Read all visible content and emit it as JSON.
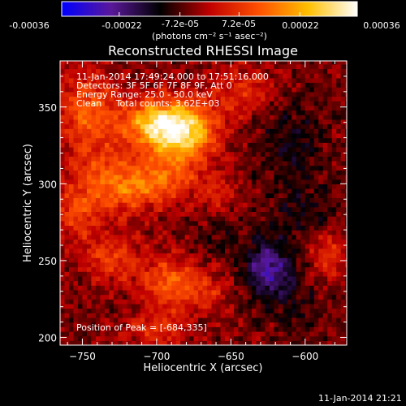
{
  "chart_data": {
    "type": "heatmap",
    "title": "Reconstructed RHESSI Image",
    "xlabel": "Heliocentric X (arcsec)",
    "ylabel": "Heliocentric Y (arcsec)",
    "xlim": [
      -765,
      -572
    ],
    "ylim": [
      195,
      380
    ],
    "xticks": [
      -750,
      -700,
      -650,
      -600
    ],
    "yticks": [
      200,
      250,
      300,
      350
    ],
    "colorbar": {
      "label": "(photons cm⁻² s⁻¹ asec⁻²)",
      "range": [
        -0.00036,
        0.00036
      ],
      "ticks_top": [
        "-7.2e-05",
        "7.2e-05"
      ],
      "ticks_bottom": [
        "-0.00036",
        "-0.00022",
        "0.00022",
        "0.00036"
      ],
      "tick_values_top": [
        -7.2e-05,
        7.2e-05
      ],
      "tick_values_bottom": [
        -0.00036,
        -0.00022,
        0.00022,
        0.00036
      ],
      "colormap": [
        "#0000ff",
        "#5a189a",
        "#000000",
        "#c00000",
        "#ff5000",
        "#ffc000",
        "#ffffff"
      ]
    },
    "annotations": [
      "11-Jan-2014 17:49:24.000 to 17:51:16.000",
      "Detectors: 3F 5F 6F 7F 8F 9F, Att 0",
      "Energy Range: 25.0 - 50.0 keV",
      "Clean     Total counts: 3.62E+03",
      "Position of Peak = [-684,335]"
    ],
    "peak": {
      "x": -684,
      "y": 335
    },
    "sources": [
      {
        "x": -684,
        "y": 335,
        "sx": 16,
        "sy": 13,
        "a": 1.0
      },
      {
        "x": -705,
        "y": 340,
        "sx": 14,
        "sy": 10,
        "a": 0.55
      },
      {
        "x": -745,
        "y": 345,
        "sx": 14,
        "sy": 20,
        "a": 0.45
      },
      {
        "x": -735,
        "y": 300,
        "sx": 16,
        "sy": 14,
        "a": 0.4
      },
      {
        "x": -710,
        "y": 300,
        "sx": 14,
        "sy": 12,
        "a": 0.4
      },
      {
        "x": -688,
        "y": 305,
        "sx": 12,
        "sy": 10,
        "a": 0.3
      },
      {
        "x": -755,
        "y": 280,
        "sx": 10,
        "sy": 12,
        "a": 0.3
      },
      {
        "x": -730,
        "y": 252,
        "sx": 14,
        "sy": 10,
        "a": 0.35
      },
      {
        "x": -690,
        "y": 235,
        "sx": 14,
        "sy": 12,
        "a": 0.48
      },
      {
        "x": -665,
        "y": 230,
        "sx": 8,
        "sy": 8,
        "a": 0.2
      },
      {
        "x": -700,
        "y": 205,
        "sx": 14,
        "sy": 8,
        "a": 0.3
      },
      {
        "x": -640,
        "y": 360,
        "sx": 16,
        "sy": 12,
        "a": 0.28
      },
      {
        "x": -585,
        "y": 255,
        "sx": 8,
        "sy": 12,
        "a": 0.35
      },
      {
        "x": -660,
        "y": 295,
        "sx": 10,
        "sy": 10,
        "a": 0.2
      },
      {
        "x": -625,
        "y": 245,
        "sx": 11,
        "sy": 13,
        "a": -0.55
      },
      {
        "x": -610,
        "y": 330,
        "sx": 18,
        "sy": 22,
        "a": -0.2
      },
      {
        "x": -600,
        "y": 280,
        "sx": 16,
        "sy": 16,
        "a": -0.18
      },
      {
        "x": -605,
        "y": 220,
        "sx": 14,
        "sy": 14,
        "a": -0.15
      },
      {
        "x": -660,
        "y": 265,
        "sx": 10,
        "sy": 10,
        "a": -0.15
      }
    ]
  },
  "page": {
    "caption": "11-Jan-2014 21:21"
  }
}
